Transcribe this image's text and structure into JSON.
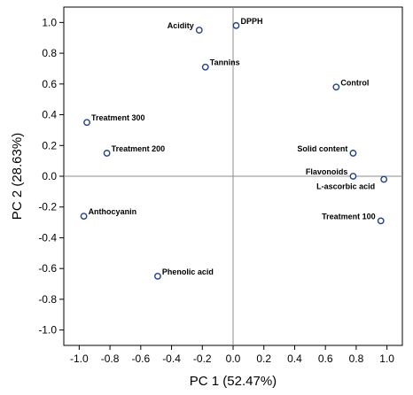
{
  "chart_data": {
    "type": "scatter",
    "xlabel": "PC 1 (52.47%)",
    "ylabel": "PC 2 (28.63%)",
    "xlim": [
      -1.1,
      1.1
    ],
    "ylim": [
      -1.1,
      1.1
    ],
    "xticks": [
      -1.0,
      -0.8,
      -0.6,
      -0.4,
      -0.2,
      0.0,
      0.2,
      0.4,
      0.6,
      0.8,
      1.0
    ],
    "yticks": [
      -1.0,
      -0.8,
      -0.6,
      -0.4,
      -0.2,
      0.0,
      0.2,
      0.4,
      0.6,
      0.8,
      1.0
    ],
    "xtick_labels": [
      "-1.0",
      "-0.8",
      "-0.6",
      "-0.4",
      "-0.2",
      "0.0",
      "0.2",
      "0.4",
      "0.6",
      "0.8",
      "1.0"
    ],
    "ytick_labels": [
      "-1.0",
      "-0.8",
      "-0.6",
      "-0.4",
      "-0.2",
      "0.0",
      "0.2",
      "0.4",
      "0.6",
      "0.8",
      "1.0"
    ],
    "reference_lines": {
      "x": 0,
      "y": 0
    },
    "grid": false,
    "marker_color": "#1f3f8f",
    "points": [
      {
        "label": "DPPH",
        "x": 0.02,
        "y": 0.98,
        "label_side": "right"
      },
      {
        "label": "Acidity",
        "x": -0.22,
        "y": 0.95,
        "label_side": "left"
      },
      {
        "label": "Tannins",
        "x": -0.18,
        "y": 0.71,
        "label_side": "right"
      },
      {
        "label": "Control",
        "x": 0.67,
        "y": 0.58,
        "label_side": "right"
      },
      {
        "label": "Treatment 300",
        "x": -0.95,
        "y": 0.35,
        "label_side": "right"
      },
      {
        "label": "Treatment 200",
        "x": -0.82,
        "y": 0.15,
        "label_side": "right"
      },
      {
        "label": "Solid content",
        "x": 0.78,
        "y": 0.15,
        "label_side": "left"
      },
      {
        "label": "Flavonoids",
        "x": 0.78,
        "y": 0.0,
        "label_side": "left"
      },
      {
        "label": "L-ascorbic acid",
        "x": 0.98,
        "y": -0.02,
        "label_side": "below-left"
      },
      {
        "label": "Anthocyanin",
        "x": -0.97,
        "y": -0.26,
        "label_side": "right"
      },
      {
        "label": "Treatment 100",
        "x": 0.96,
        "y": -0.29,
        "label_side": "left"
      },
      {
        "label": "Phenolic acid",
        "x": -0.49,
        "y": -0.65,
        "label_side": "right"
      }
    ]
  }
}
